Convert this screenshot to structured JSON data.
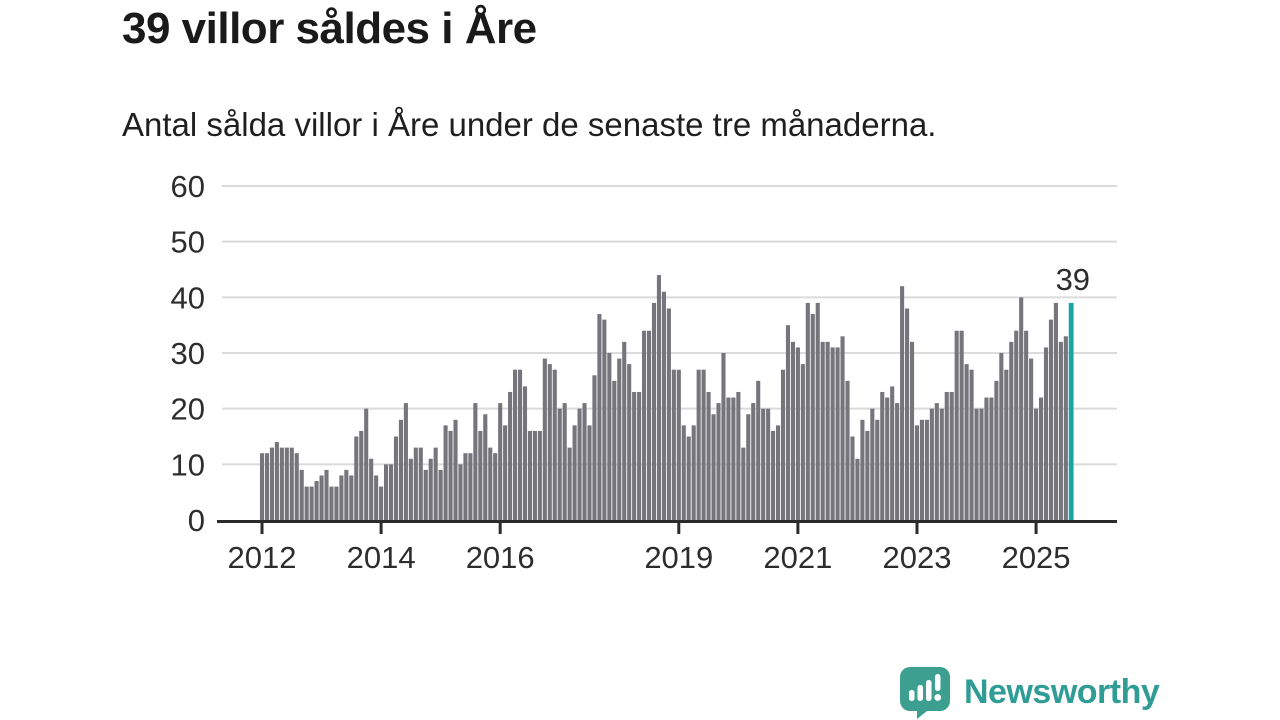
{
  "title": "39 villor såldes i Åre",
  "subtitle": "Antal sålda villor i Åre under de senaste tre månaderna.",
  "branding": {
    "name": "Newsworthy",
    "icon": "newsworthy-speech-bubble-bar-chart-icon"
  },
  "colors": {
    "bar": "#75757b",
    "highlight": "#18a6a2",
    "axis": "#2b2b2b",
    "grid": "#dbdbdb",
    "tick_label": "#2d2d2d",
    "annotation_text": "#2d2d2d",
    "brand_icon_teal": "#3c9f90",
    "brand_text_teal": "#2f9d95",
    "background": "#ffffff"
  },
  "chart_data": {
    "type": "bar",
    "title": "39 villor såldes i Åre",
    "subtitle": "Antal sålda villor i Åre under de senaste tre månaderna.",
    "frequency": "monthly",
    "x_start": "2012-01",
    "x_end": "2025-08",
    "x_tick_years": [
      2012,
      2014,
      2016,
      2019,
      2021,
      2023,
      2025
    ],
    "y_ticks": [
      0,
      10,
      20,
      30,
      40,
      50,
      60
    ],
    "ylim": [
      0,
      60
    ],
    "grid": true,
    "legend": false,
    "highlight_last_bar": true,
    "annotation": {
      "label": "39",
      "value": 39,
      "position": "above-last-bar"
    },
    "values": [
      12,
      12,
      13,
      14,
      13,
      13,
      13,
      12,
      9,
      6,
      6,
      7,
      8,
      9,
      6,
      6,
      8,
      9,
      8,
      15,
      16,
      20,
      11,
      8,
      6,
      10,
      10,
      15,
      18,
      21,
      11,
      13,
      13,
      9,
      11,
      13,
      9,
      17,
      16,
      18,
      10,
      12,
      12,
      21,
      16,
      19,
      13,
      12,
      21,
      17,
      23,
      27,
      27,
      24,
      16,
      16,
      16,
      29,
      28,
      27,
      20,
      21,
      13,
      17,
      20,
      21,
      17,
      26,
      37,
      36,
      30,
      25,
      29,
      32,
      28,
      23,
      23,
      34,
      34,
      39,
      44,
      41,
      38,
      27,
      27,
      17,
      15,
      17,
      27,
      27,
      23,
      19,
      21,
      30,
      22,
      22,
      23,
      13,
      19,
      21,
      25,
      20,
      20,
      16,
      17,
      27,
      35,
      32,
      31,
      28,
      39,
      37,
      39,
      32,
      32,
      31,
      31,
      33,
      25,
      15,
      11,
      18,
      16,
      20,
      18,
      23,
      22,
      24,
      21,
      42,
      38,
      32,
      17,
      18,
      18,
      20,
      21,
      20,
      23,
      23,
      34,
      34,
      28,
      27,
      20,
      20,
      22,
      22,
      25,
      30,
      27,
      32,
      34,
      40,
      34,
      29,
      20,
      22,
      31,
      36,
      39,
      32,
      33,
      39
    ]
  }
}
